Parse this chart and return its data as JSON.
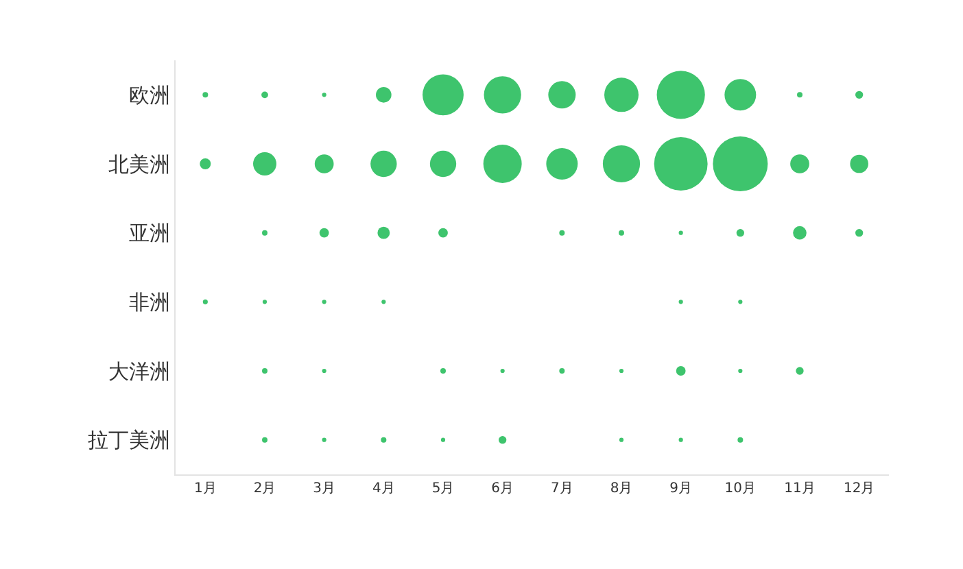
{
  "chart_data": {
    "type": "bubble",
    "orientation": "horizontal",
    "marker": "circle",
    "categories": [
      "欧洲",
      "北美洲",
      "亚洲",
      "非洲",
      "大洋洲",
      "拉丁美洲"
    ],
    "xlim": [
      0.5,
      12.5
    ],
    "xticks": [
      {
        "value": 1,
        "label": "1月"
      },
      {
        "value": 2,
        "label": "2月"
      },
      {
        "value": 3,
        "label": "3月"
      },
      {
        "value": 4,
        "label": "4月"
      },
      {
        "value": 5,
        "label": "5月"
      },
      {
        "value": 6,
        "label": "6月"
      },
      {
        "value": 7,
        "label": "7月"
      },
      {
        "value": 8,
        "label": "8月"
      },
      {
        "value": 9,
        "label": "9月"
      },
      {
        "value": 10,
        "label": "10月"
      },
      {
        "value": 11,
        "label": "11月"
      },
      {
        "value": 12,
        "label": "12月"
      }
    ],
    "series": [
      {
        "color": "#3ec46d",
        "values": [
          1,
          1,
          null,
          1,
          null,
          null
        ],
        "sizes": [
          0.01,
          0.04,
          null,
          0.008,
          null,
          null
        ]
      },
      {
        "color": "#3ec46d",
        "values": [
          2,
          2,
          2,
          2,
          2,
          2
        ],
        "sizes": [
          0.015,
          0.18,
          0.01,
          0.006,
          0.01,
          0.01
        ]
      },
      {
        "color": "#3ec46d",
        "values": [
          3,
          3,
          3,
          3,
          3,
          3
        ],
        "sizes": [
          0.006,
          0.12,
          0.03,
          0.006,
          0.006,
          0.006
        ]
      },
      {
        "color": "#3ec46d",
        "values": [
          4,
          4,
          4,
          4,
          null,
          4
        ],
        "sizes": [
          0.08,
          0.23,
          0.05,
          0.006,
          null,
          0.01
        ]
      },
      {
        "color": "#3ec46d",
        "values": [
          5,
          5,
          5,
          null,
          5,
          5
        ],
        "sizes": [
          0.56,
          0.23,
          0.03,
          null,
          0.01,
          0.006
        ]
      },
      {
        "color": "#3ec46d",
        "values": [
          6,
          6,
          null,
          null,
          6,
          6
        ],
        "sizes": [
          0.46,
          0.49,
          null,
          null,
          0.006,
          0.02
        ]
      },
      {
        "color": "#3ec46d",
        "values": [
          7,
          7,
          7,
          null,
          7,
          null
        ],
        "sizes": [
          0.25,
          0.33,
          0.01,
          null,
          0.01,
          null
        ]
      },
      {
        "color": "#3ec46d",
        "values": [
          8,
          8,
          8,
          null,
          8,
          8
        ],
        "sizes": [
          0.39,
          0.46,
          0.01,
          null,
          0.006,
          0.006
        ]
      },
      {
        "color": "#3ec46d",
        "values": [
          9,
          9,
          9,
          9,
          9,
          9
        ],
        "sizes": [
          0.77,
          0.95,
          0.006,
          0.006,
          0.03,
          0.006
        ]
      },
      {
        "color": "#3ec46d",
        "values": [
          10,
          10,
          10,
          10,
          10,
          10
        ],
        "sizes": [
          0.33,
          1,
          0.02,
          0.006,
          0.006,
          0.01
        ]
      },
      {
        "color": "#3ec46d",
        "values": [
          11,
          11,
          11,
          null,
          11,
          null
        ],
        "sizes": [
          0.01,
          0.12,
          0.06,
          null,
          0.02,
          null
        ]
      },
      {
        "color": "#3ec46d",
        "values": [
          12,
          12,
          12,
          null,
          null,
          null
        ],
        "sizes": [
          0.02,
          0.11,
          0.02,
          null,
          null,
          null
        ]
      }
    ]
  }
}
